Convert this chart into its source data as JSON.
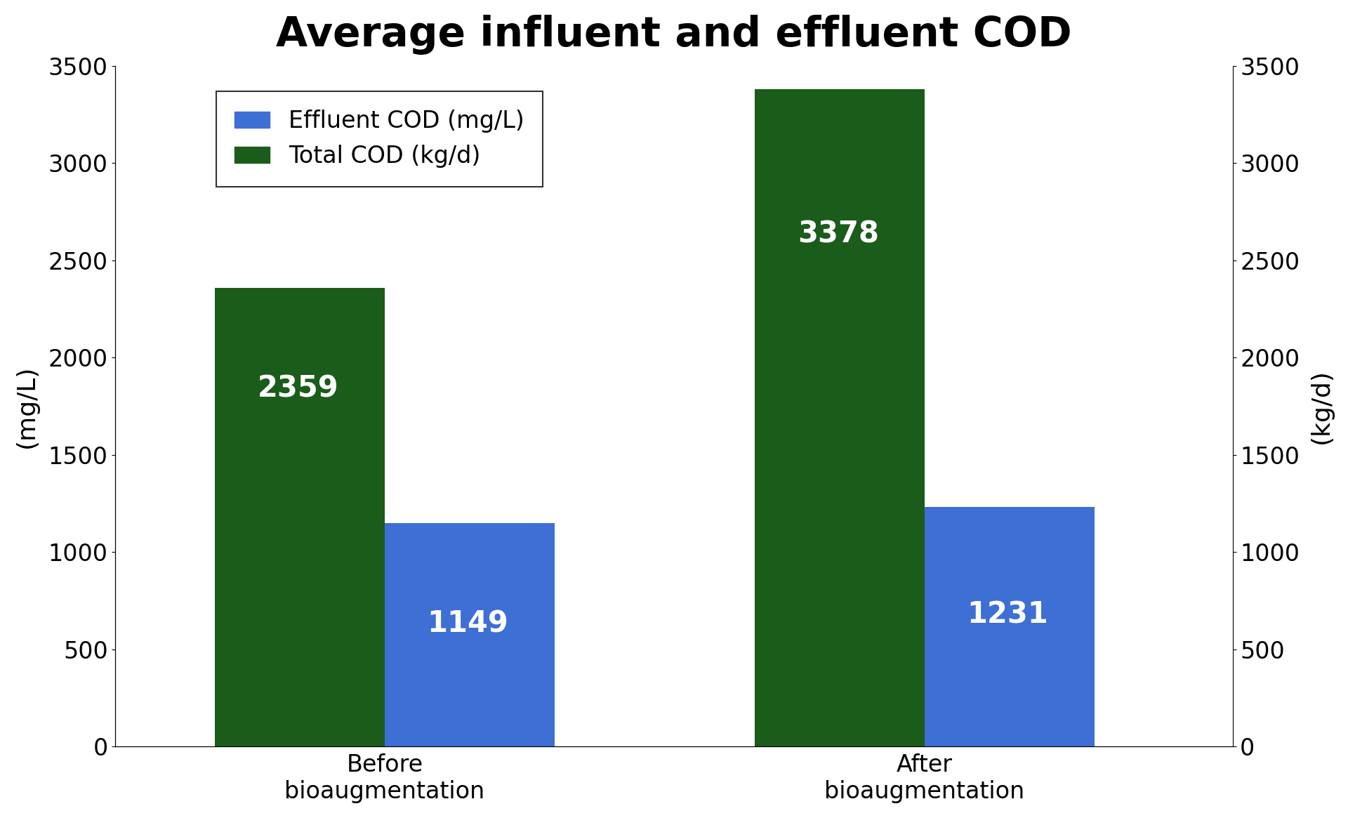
{
  "title": "Average influent and effluent COD",
  "title_fontsize": 42,
  "title_fontweight": "bold",
  "ylabel_left": "(mg/L)",
  "ylabel_right": "(kg/d)",
  "ylabel_fontsize": 26,
  "ylim": [
    0,
    3500
  ],
  "yticks": [
    0,
    500,
    1000,
    1500,
    2000,
    2500,
    3000,
    3500
  ],
  "categories": [
    "Before\nbioaugmentation",
    "After\nbioaugmentation"
  ],
  "green_values": [
    2359,
    3378
  ],
  "blue_values": [
    1149,
    1231
  ],
  "green_color": "#1a5c1a",
  "blue_color": "#3d6fd4",
  "bar_width": 0.22,
  "legend_labels": [
    "Effluent COD (mg/L)",
    "Total COD (kg/d)"
  ],
  "legend_colors": [
    "#3d6fd4",
    "#1a5c1a"
  ],
  "label_fontsize": 24,
  "value_fontsize": 30,
  "tick_fontsize": 24,
  "background_color": "#ffffff",
  "group_centers": [
    0.35,
    1.05
  ],
  "xlim": [
    0.0,
    1.45
  ]
}
